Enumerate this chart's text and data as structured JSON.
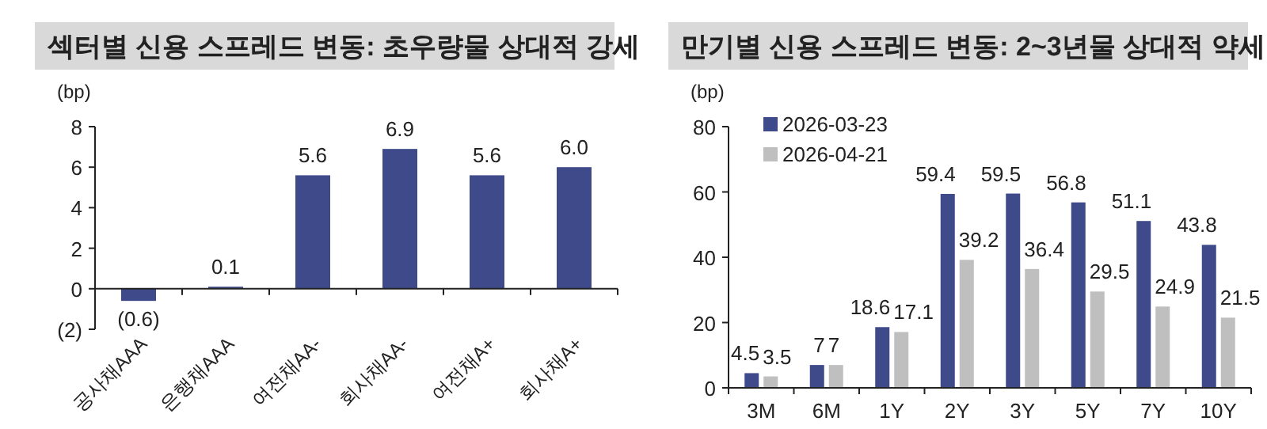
{
  "chart_data": [
    {
      "type": "bar",
      "title": "섹터별 신용 스프레드 변동: 초우량물 상대적 강세",
      "ylabel": "(bp)",
      "categories": [
        "공사채AAA",
        "은행채AAA",
        "여전채AA-",
        "회사채AA-",
        "여전채A+",
        "회사채A+"
      ],
      "values": [
        -0.6,
        0.1,
        5.6,
        6.9,
        5.6,
        6.0
      ],
      "color": "#3f4a8a",
      "value_labels": [
        "(0.6)",
        "0.1",
        "5.6",
        "6.9",
        "5.6",
        "6.0"
      ],
      "ylim": [
        -2,
        8
      ],
      "yticks": [
        {
          "value": -2,
          "label": "(2)"
        },
        0,
        2,
        4,
        6,
        8
      ]
    },
    {
      "type": "bar",
      "title": "만기별 신용 스프레드 변동: 2~3년물 상대적 약세",
      "ylabel": "(bp)",
      "categories": [
        "3M",
        "6M",
        "1Y",
        "2Y",
        "3Y",
        "5Y",
        "7Y",
        "10Y"
      ],
      "series": [
        {
          "name": "2026-03-23",
          "color": "#3f4a8a",
          "values": [
            4.5,
            7,
            18.6,
            59.4,
            59.5,
            56.8,
            51.1,
            43.8
          ]
        },
        {
          "name": "2026-04-21",
          "color": "#bfbfbf",
          "values": [
            3.5,
            7,
            17.1,
            39.2,
            36.4,
            29.5,
            24.9,
            21.5
          ]
        }
      ],
      "data_labels": true,
      "legend": "top left",
      "ylim": [
        0,
        80
      ],
      "yticks": [
        0,
        20,
        40,
        60,
        80
      ]
    }
  ]
}
